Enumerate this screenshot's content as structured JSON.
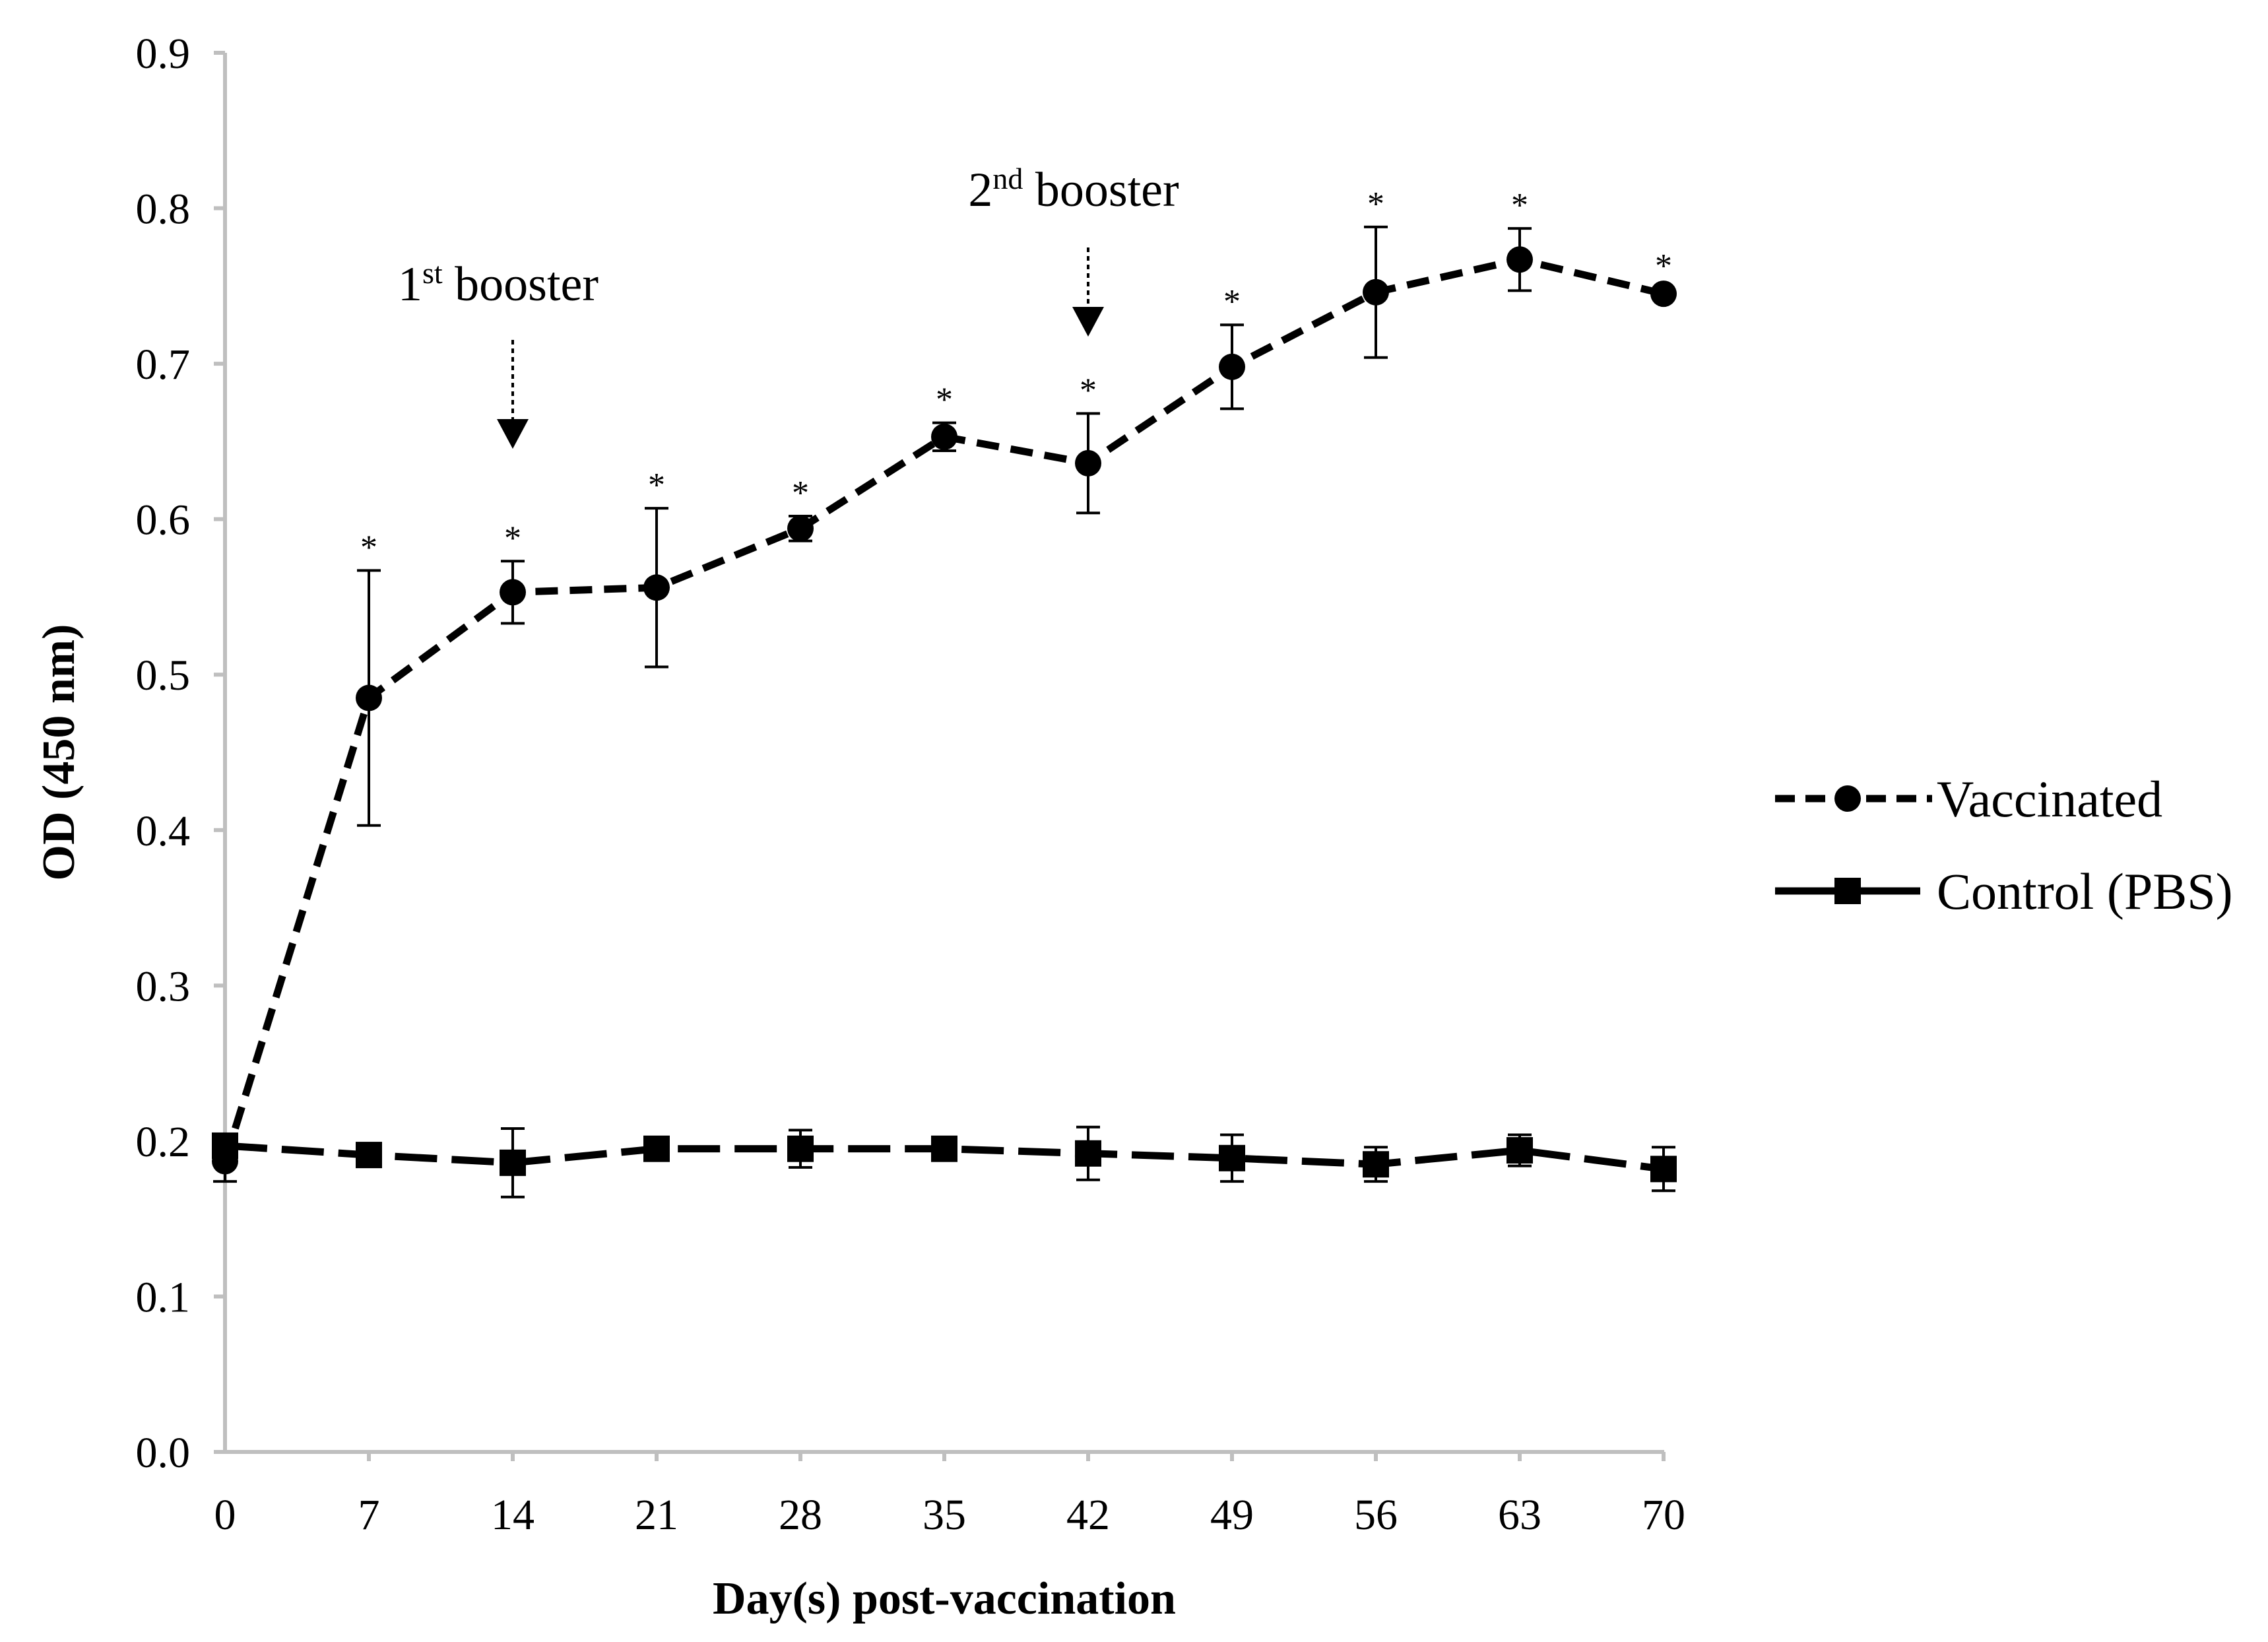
{
  "chart_data": {
    "type": "line",
    "xlabel": "Day(s) post-vaccination",
    "ylabel": "OD (450 nm)",
    "ylim": [
      0,
      0.9
    ],
    "yticks": [
      "0.0",
      "0.1",
      "0.2",
      "0.3",
      "0.4",
      "0.5",
      "0.6",
      "0.7",
      "0.8",
      "0.9"
    ],
    "categories": [
      "0",
      "7",
      "14",
      "21",
      "28",
      "35",
      "42",
      "49",
      "56",
      "63",
      "70"
    ],
    "grid": false,
    "legend_position": "right",
    "series": [
      {
        "name": "Vaccinated",
        "marker": "circle",
        "line_style": "short-dash",
        "color": "#000000",
        "values": [
          0.187,
          0.485,
          0.553,
          0.556,
          0.594,
          0.653,
          0.636,
          0.698,
          0.746,
          0.767,
          0.745
        ],
        "errors": [
          0.013,
          0.082,
          0.02,
          0.051,
          0.008,
          0.009,
          0.032,
          0.027,
          0.042,
          0.02,
          0.003
        ],
        "significance": [
          "",
          "*",
          "*",
          "*",
          "*",
          "*",
          "*",
          "*",
          "*",
          "*",
          "*"
        ]
      },
      {
        "name": "Control (PBS)",
        "marker": "square",
        "line_style": "long-dash",
        "color": "#000000",
        "values": [
          0.197,
          0.191,
          0.186,
          0.195,
          0.195,
          0.195,
          0.192,
          0.189,
          0.185,
          0.194,
          0.182
        ],
        "errors": [
          0.004,
          0.004,
          0.022,
          0.004,
          0.012,
          0.004,
          0.017,
          0.015,
          0.011,
          0.01,
          0.014
        ],
        "significance": [
          "",
          "",
          "",
          "",
          "",
          "",
          "",
          "",
          "",
          "",
          ""
        ]
      }
    ],
    "annotations": [
      {
        "base": "1",
        "sup": "st",
        "text": " booster",
        "x_day": 14
      },
      {
        "base": "2",
        "sup": "nd",
        "text": " booster",
        "x_day": 42
      }
    ]
  }
}
